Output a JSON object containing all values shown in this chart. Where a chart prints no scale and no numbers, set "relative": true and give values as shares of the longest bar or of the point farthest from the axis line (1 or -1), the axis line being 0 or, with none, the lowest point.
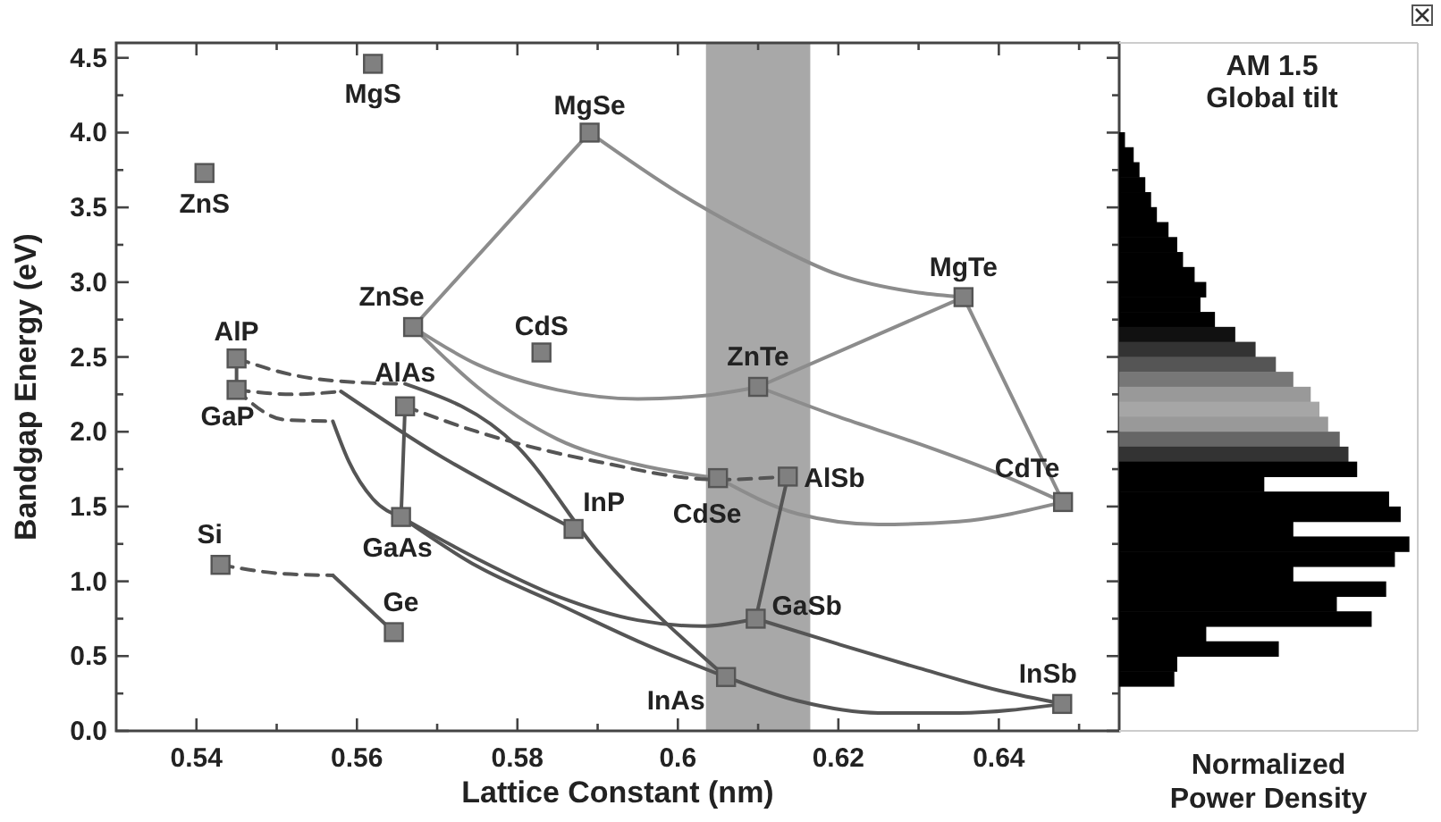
{
  "chart_data": [
    {
      "type": "scatter",
      "xlabel": "Lattice Constant (nm)",
      "ylabel": "Bandgap Energy (eV)",
      "xlim": [
        0.53,
        0.655
      ],
      "ylim": [
        0,
        4.6
      ],
      "xticks": [
        0.54,
        {
          "value": 0.55,
          "label": null
        },
        0.56,
        {
          "value": 0.57,
          "label": null
        },
        0.58,
        {
          "value": 0.59,
          "label": null
        },
        0.6,
        {
          "value": 0.61,
          "label": null
        },
        0.62,
        {
          "value": 0.63,
          "label": null
        },
        0.64,
        {
          "value": 0.65,
          "label": null
        }
      ],
      "yticks": [
        {
          "value": 0,
          "label": "0.0"
        },
        {
          "value": 0.25,
          "label": null
        },
        0.5,
        {
          "value": 0.75,
          "label": null
        },
        {
          "value": 1,
          "label": "1.0"
        },
        {
          "value": 1.25,
          "label": null
        },
        1.5,
        {
          "value": 1.75,
          "label": null
        },
        {
          "value": 2,
          "label": "2.0"
        },
        {
          "value": 2.25,
          "label": null
        },
        2.5,
        {
          "value": 2.75,
          "label": null
        },
        {
          "value": 3,
          "label": "3.0"
        },
        {
          "value": 3.25,
          "label": null
        },
        3.5,
        {
          "value": 3.75,
          "label": null
        },
        {
          "value": 4,
          "label": "4.0"
        },
        {
          "value": 4.25,
          "label": null
        },
        4.5
      ],
      "bands": [
        {
          "axis": "x",
          "from": 0.6035,
          "to": 0.6165,
          "color": "#a8a8a8"
        }
      ],
      "series": [
        {
          "type": "line",
          "color": "#8c8c8c",
          "x": [
            0.567,
            0.589
          ],
          "values": [
            2.7,
            4.0
          ]
        },
        {
          "type": "line",
          "color": "#8c8c8c",
          "x": [
            0.589,
            0.6,
            0.61,
            0.62,
            0.63,
            0.6356
          ],
          "values": [
            4.0,
            3.6,
            3.3,
            3.05,
            2.93,
            2.9
          ]
        },
        {
          "type": "line",
          "color": "#8c8c8c",
          "x": [
            0.567,
            0.575,
            0.585,
            0.595,
            0.603,
            0.61
          ],
          "values": [
            2.7,
            2.45,
            2.28,
            2.22,
            2.24,
            2.3
          ]
        },
        {
          "type": "line",
          "color": "#8c8c8c",
          "x": [
            0.61,
            0.6356
          ],
          "values": [
            2.3,
            2.9
          ]
        },
        {
          "type": "line",
          "color": "#8c8c8c",
          "x": [
            0.6356,
            0.648
          ],
          "values": [
            2.9,
            1.53
          ]
        },
        {
          "type": "line",
          "color": "#8c8c8c",
          "x": [
            0.61,
            0.62,
            0.63,
            0.64,
            0.648
          ],
          "values": [
            2.3,
            2.1,
            1.92,
            1.72,
            1.53
          ]
        },
        {
          "type": "line",
          "color": "#8c8c8c",
          "x": [
            0.567,
            0.575,
            0.585,
            0.595,
            0.605
          ],
          "values": [
            2.7,
            2.3,
            1.95,
            1.78,
            1.69
          ]
        },
        {
          "type": "line",
          "color": "#8c8c8c",
          "x": [
            0.605,
            0.615,
            0.625,
            0.635,
            0.648
          ],
          "values": [
            1.69,
            1.45,
            1.38,
            1.4,
            1.53
          ]
        },
        {
          "type": "line",
          "color": "#555555",
          "x": [
            0.545,
            0.545
          ],
          "values": [
            2.49,
            2.28
          ]
        },
        {
          "type": "line",
          "color": "#555555",
          "line_style": "dashed",
          "x": [
            0.545,
            0.552,
            0.56,
            0.566
          ],
          "values": [
            2.49,
            2.38,
            2.33,
            2.32
          ]
        },
        {
          "type": "line",
          "color": "#555555",
          "x": [
            0.566,
            0.58,
            0.59,
            0.606
          ],
          "values": [
            2.32,
            1.9,
            1.2,
            0.36
          ]
        },
        {
          "type": "line",
          "color": "#555555",
          "line_style": "dashed",
          "x": [
            0.545,
            0.552,
            0.558
          ],
          "values": [
            2.28,
            2.25,
            2.27
          ]
        },
        {
          "type": "line",
          "color": "#555555",
          "x": [
            0.558,
            0.57,
            0.58,
            0.587
          ],
          "values": [
            2.27,
            1.85,
            1.55,
            1.35
          ]
        },
        {
          "type": "line",
          "color": "#555555",
          "line_style": "dashed",
          "x": [
            0.545,
            0.551,
            0.557
          ],
          "values": [
            2.28,
            2.08,
            2.07
          ]
        },
        {
          "type": "line",
          "color": "#555555",
          "x": [
            0.557,
            0.559,
            0.562,
            0.5655
          ],
          "values": [
            2.07,
            1.8,
            1.55,
            1.43
          ]
        },
        {
          "type": "line",
          "color": "#555555",
          "x": [
            0.5655,
            0.566
          ],
          "values": [
            1.43,
            2.17
          ]
        },
        {
          "type": "line",
          "color": "#555555",
          "line_style": "dashed",
          "x": [
            0.566,
            0.575,
            0.59,
            0.605,
            0.6137
          ],
          "values": [
            2.17,
            2.0,
            1.8,
            1.68,
            1.7
          ]
        },
        {
          "type": "line",
          "color": "#555555",
          "x": [
            0.6137,
            0.612,
            0.6097
          ],
          "values": [
            1.7,
            1.3,
            0.75
          ]
        },
        {
          "type": "line",
          "color": "#555555",
          "x": [
            0.5655,
            0.575,
            0.585,
            0.595,
            0.603,
            0.6097
          ],
          "values": [
            1.43,
            1.15,
            0.9,
            0.74,
            0.7,
            0.75
          ]
        },
        {
          "type": "line",
          "color": "#555555",
          "x": [
            0.5655,
            0.575,
            0.585,
            0.595,
            0.606
          ],
          "values": [
            1.43,
            1.1,
            0.85,
            0.6,
            0.36
          ]
        },
        {
          "type": "line",
          "color": "#555555",
          "x": [
            0.6097,
            0.62,
            0.63,
            0.64,
            0.648
          ],
          "values": [
            0.75,
            0.58,
            0.42,
            0.27,
            0.18
          ]
        },
        {
          "type": "line",
          "color": "#555555",
          "x": [
            0.606,
            0.615,
            0.625,
            0.635,
            0.648
          ],
          "values": [
            0.36,
            0.2,
            0.12,
            0.12,
            0.18
          ]
        },
        {
          "type": "line",
          "color": "#555555",
          "line_style": "dashed",
          "x": [
            0.543,
            0.551,
            0.557
          ],
          "values": [
            1.11,
            1.05,
            1.04
          ]
        },
        {
          "type": "line",
          "color": "#555555",
          "x": [
            0.557,
            0.5646
          ],
          "values": [
            1.04,
            0.66
          ]
        },
        {
          "type": "scatter",
          "color": "#808080",
          "marker": "square",
          "x": [
            0.541,
            0.562,
            0.589,
            0.567,
            0.583,
            0.545,
            0.545,
            0.566,
            0.5655,
            0.543,
            0.5646,
            0.587,
            0.606,
            0.605,
            0.6137,
            0.6097,
            0.6479,
            0.648,
            0.6356,
            0.61
          ],
          "values": [
            3.73,
            4.46,
            4.0,
            2.7,
            2.53,
            2.49,
            2.28,
            2.17,
            1.43,
            1.11,
            0.66,
            1.35,
            0.36,
            1.69,
            1.7,
            0.75,
            0.18,
            1.53,
            2.9,
            2.3
          ],
          "value_labels": [
            "ZnS",
            "MgS",
            "MgSe",
            "ZnSe",
            "CdS",
            "AlP",
            "GaP",
            "AlAs",
            "GaAs",
            "Si",
            "Ge",
            "InP",
            "InAs",
            "CdSe",
            "AlSb",
            "GaSb",
            "InSb",
            "CdTe",
            "MgTe",
            "ZnTe"
          ]
        }
      ]
    },
    {
      "type": "bar",
      "orientation": "horizontal",
      "relative": true,
      "title": "AM 1.5 Global tilt",
      "xlabel": "Normalized Power Density",
      "categories": [
        null,
        null,
        null,
        null,
        null,
        null,
        null,
        null,
        null,
        null,
        null,
        null,
        null,
        null,
        null,
        null,
        null,
        null,
        null,
        null,
        null,
        null,
        null,
        null,
        null,
        null,
        null,
        null,
        null,
        null,
        null,
        null,
        null,
        null,
        null,
        null,
        null
      ],
      "values": [
        0.02,
        0.05,
        0.07,
        0.09,
        0.11,
        0.13,
        0.17,
        0.2,
        0.22,
        0.26,
        0.3,
        0.28,
        0.33,
        0.4,
        0.47,
        0.54,
        0.6,
        0.66,
        0.69,
        0.72,
        0.76,
        0.79,
        0.82,
        0.5,
        0.93,
        0.97,
        0.6,
        1.0,
        0.95,
        0.6,
        0.92,
        0.75,
        0.87,
        0.3,
        0.55,
        0.2,
        0.19
      ],
      "colors": [
        "#000000",
        "#000000",
        "#000000",
        "#000000",
        "#000000",
        "#000000",
        "#000000",
        "#000000",
        "#000000",
        "#000000",
        "#000000",
        "#000000",
        "#000000",
        "#111111",
        "#333333",
        "#555555",
        "#777777",
        "#999999",
        "#a6a6a6",
        "#999999",
        "#666666",
        "#333333",
        "#000000",
        "#000000",
        "#000000",
        "#000000",
        "#000000",
        "#000000",
        "#000000",
        "#000000",
        "#000000",
        "#000000",
        "#000000",
        "#000000",
        "#000000",
        "#000000",
        "#000000"
      ]
    }
  ]
}
